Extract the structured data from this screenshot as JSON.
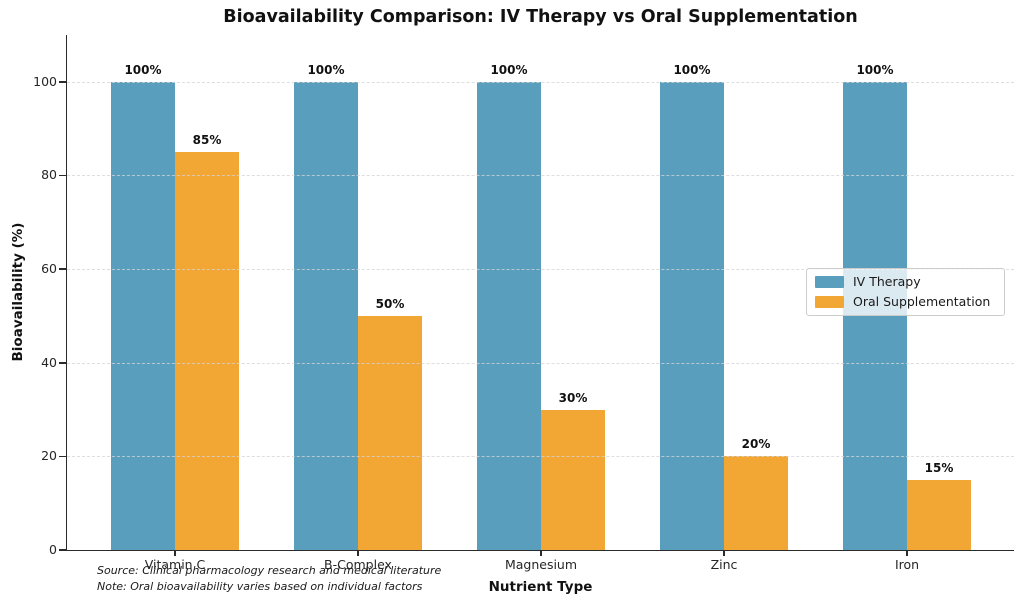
{
  "chart_data": {
    "type": "bar",
    "title": "Bioavailability Comparison: IV Therapy vs Oral Supplementation",
    "xlabel": "Nutrient Type",
    "ylabel": "Bioavailability (%)",
    "categories": [
      "Vitamin C",
      "B-Complex",
      "Magnesium",
      "Zinc",
      "Iron"
    ],
    "series": [
      {
        "name": "IV Therapy",
        "color": "#5A9EBE",
        "values": [
          100,
          100,
          100,
          100,
          100
        ],
        "labels": [
          "100%",
          "100%",
          "100%",
          "100%",
          "100%"
        ]
      },
      {
        "name": "Oral Supplementation",
        "color": "#F2A633",
        "values": [
          85,
          50,
          30,
          20,
          15
        ],
        "labels": [
          "85%",
          "50%",
          "30%",
          "20%",
          "15%"
        ]
      }
    ],
    "yticks": [
      0,
      20,
      40,
      60,
      80,
      100
    ],
    "ylim": [
      0,
      110
    ],
    "grid": "horizontal dashed, drawn over bars",
    "legend_position": "center right",
    "notes": [
      "Source: Clinical pharmacology research and medical literature",
      "Note: Oral bioavailability varies based on individual factors"
    ]
  }
}
